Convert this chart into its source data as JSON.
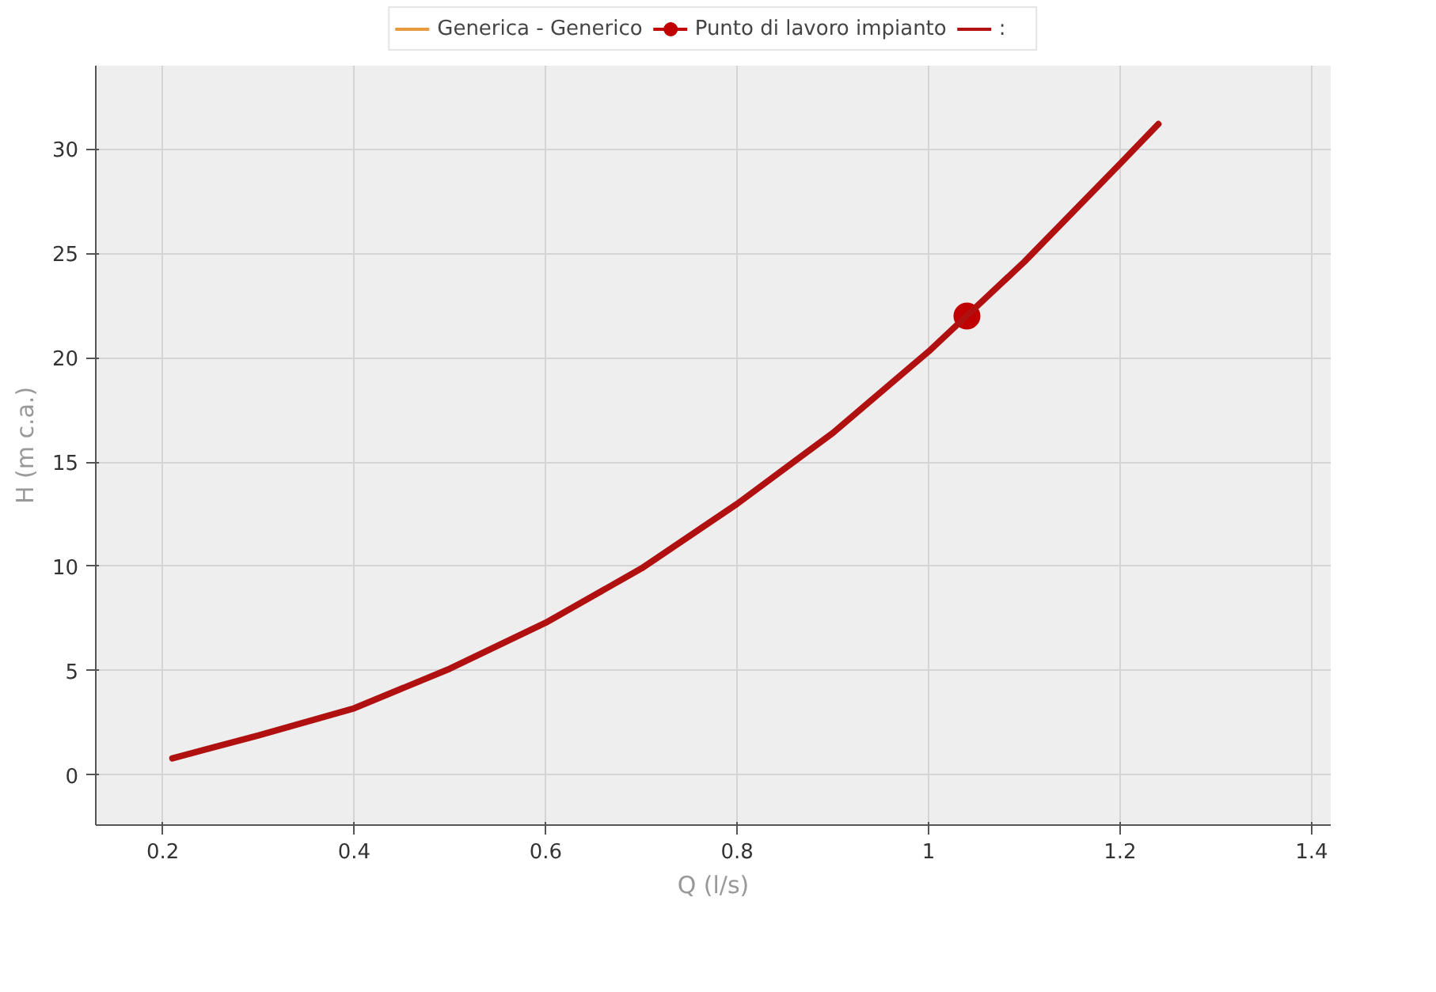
{
  "chart_data": {
    "type": "line",
    "xlabel": "Q (l/s)",
    "ylabel": "H (m c.a.)",
    "xlim": [
      0.13,
      1.42
    ],
    "ylim": [
      -2.4,
      34
    ],
    "xticks": [
      0.2,
      0.4,
      0.6,
      0.8,
      1,
      1.2,
      1.4
    ],
    "yticks": [
      0,
      5,
      10,
      15,
      20,
      25,
      30
    ],
    "grid": true,
    "legend": "top",
    "series": [
      {
        "name": "Generica - Generico",
        "color": "#e89a3c"
      },
      {
        "name": "Punto di lavoro impianto",
        "type": "scatter",
        "marker": "circle",
        "color": "#c00000",
        "x": [
          1.04
        ],
        "values": [
          22
        ]
      },
      {
        "name": ":",
        "color": "#b01010",
        "x": [
          0.21,
          0.3,
          0.4,
          0.5,
          0.6,
          0.7,
          0.8,
          0.9,
          1.0,
          1.1,
          1.2,
          1.24
        ],
        "values": [
          0.8,
          1.9,
          3.2,
          5.1,
          7.3,
          9.9,
          13.0,
          16.4,
          20.3,
          24.6,
          29.3,
          31.2
        ]
      }
    ]
  }
}
